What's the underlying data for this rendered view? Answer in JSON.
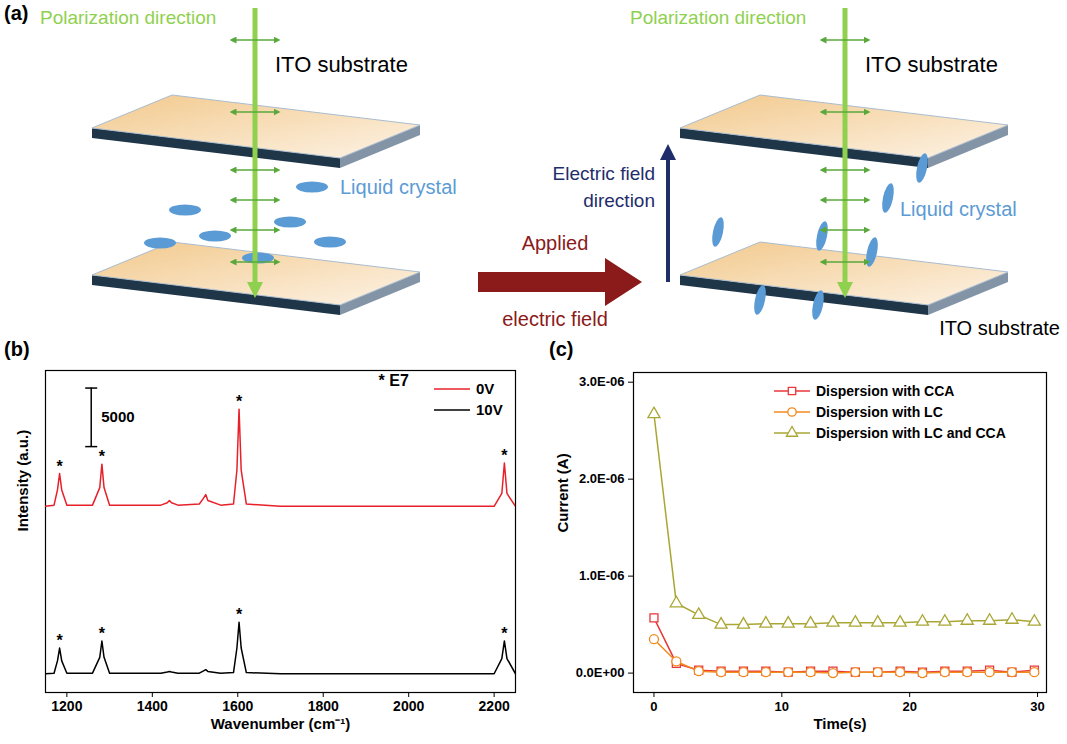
{
  "diagram": {
    "panel": "(a)",
    "left": {
      "polarization": "Polarization direction",
      "substrate_top": "ITO substrate",
      "liquid_crystal": "Liquid crystal"
    },
    "transition": "Applied electric field",
    "right": {
      "polarization": "Polarization direction",
      "substrate_top": "ITO substrate",
      "field": "Electric field direction",
      "liquid_crystal": "Liquid crystal",
      "substrate_bottom": "ITO substrate"
    }
  },
  "chart_data": [
    {
      "panel": "(b)",
      "type": "line",
      "x_label": "Wavenumber (cm⁻¹)",
      "y_label": "Intensity (a.u.)",
      "x": [
        1150,
        1170,
        1178,
        1183,
        1188,
        1200,
        1260,
        1277,
        1282,
        1287,
        1300,
        1420,
        1435,
        1440,
        1445,
        1460,
        1510,
        1520,
        1525,
        1530,
        1560,
        1590,
        1598,
        1603,
        1608,
        1620,
        1700,
        2200,
        2218,
        2224,
        2230,
        2250
      ],
      "series": [
        {
          "name": "0V",
          "color": "#e8202a",
          "line_style": "solid",
          "values": [
            15900,
            16000,
            17300,
            18700,
            17300,
            16000,
            16000,
            17500,
            19500,
            17500,
            16000,
            16000,
            16200,
            16400,
            16200,
            16000,
            16100,
            16600,
            16900,
            16400,
            16000,
            16100,
            19000,
            24200,
            19000,
            16100,
            15900,
            15900,
            17000,
            19600,
            17000,
            15900
          ]
        },
        {
          "name": "10V",
          "color": "#000000",
          "line_style": "solid",
          "values": [
            1600,
            1650,
            2700,
            3800,
            2700,
            1650,
            1650,
            3000,
            4400,
            3000,
            1650,
            1650,
            1750,
            1800,
            1750,
            1650,
            1650,
            1850,
            1950,
            1800,
            1650,
            1700,
            3800,
            6000,
            3800,
            1700,
            1600,
            1600,
            2900,
            4400,
            2900,
            1600
          ]
        }
      ],
      "xlim": [
        1150,
        2250
      ],
      "xticks": [
        1200,
        1400,
        1600,
        1800,
        2000,
        2200
      ],
      "ylim": [
        0,
        27500
      ],
      "tick_labels": "x",
      "legend": "top-right",
      "scale_bar": {
        "x": 1257,
        "from": 21000,
        "length": 5000
      },
      "annotations": [
        {
          "text": "*",
          "x": 1183,
          "y": 18700
        },
        {
          "text": "*",
          "x": 1282,
          "y": 19500
        },
        {
          "text": "*",
          "x": 1603,
          "y": 24200
        },
        {
          "text": "*",
          "x": 2224,
          "y": 19600
        },
        {
          "text": "*",
          "x": 1183,
          "y": 3800
        },
        {
          "text": "*",
          "x": 1282,
          "y": 4400
        },
        {
          "text": "*",
          "x": 1603,
          "y": 6000
        },
        {
          "text": "*",
          "x": 2224,
          "y": 4400
        },
        {
          "text": "* E7",
          "x": 1965,
          "y": 26000
        }
      ]
    },
    {
      "panel": "(c)",
      "type": "line",
      "x_label": "Time(s)",
      "y_label": "Current (A)",
      "x": [
        0,
        1.75,
        3.5,
        5.25,
        7,
        8.75,
        10.5,
        12.25,
        14,
        15.75,
        17.5,
        19.25,
        21,
        22.75,
        24.5,
        26.25,
        28,
        29.75
      ],
      "series": [
        {
          "name": "Dispersion with CCA",
          "color": "#e8373a",
          "marker": "square",
          "line_style": "solid",
          "values": [
            5.7e-07,
            1e-07,
            3e-08,
            2e-08,
            2e-08,
            2e-08,
            1e-08,
            2e-08,
            2e-08,
            1e-08,
            1e-08,
            2e-08,
            1e-08,
            2e-08,
            2e-08,
            3e-08,
            1e-08,
            3e-08
          ]
        },
        {
          "name": "Dispersion with LC",
          "color": "#f28a1e",
          "marker": "circle",
          "line_style": "solid",
          "values": [
            3.5e-07,
            1.2e-07,
            2e-08,
            1e-08,
            1e-08,
            1e-08,
            1e-08,
            1e-08,
            0,
            1e-08,
            1e-08,
            1e-08,
            0,
            1e-08,
            1e-08,
            1e-08,
            1e-08,
            1e-08
          ]
        },
        {
          "name": "Dispersion with LC and CCA",
          "color": "#a9a634",
          "marker": "triangle",
          "line_style": "solid",
          "values": [
            2.67e-06,
            7.2e-07,
            6e-07,
            5e-07,
            5e-07,
            5.1e-07,
            5.1e-07,
            5.1e-07,
            5.2e-07,
            5.2e-07,
            5.2e-07,
            5.2e-07,
            5.3e-07,
            5.3e-07,
            5.4e-07,
            5.4e-07,
            5.5e-07,
            5.3e-07
          ]
        }
      ],
      "xlim": [
        -1.6,
        30.7
      ],
      "xticks": [
        0,
        10,
        20,
        30
      ],
      "ylim": [
        -2e-07,
        3.1e-06
      ],
      "yticks": [
        {
          "value": 0,
          "label": "0.0E+00"
        },
        {
          "value": 1e-06,
          "label": "1.0E-06"
        },
        {
          "value": 2e-06,
          "label": "2.0E-06"
        },
        {
          "value": 3e-06,
          "label": "3.0E-06"
        }
      ],
      "legend": "top-right"
    }
  ]
}
